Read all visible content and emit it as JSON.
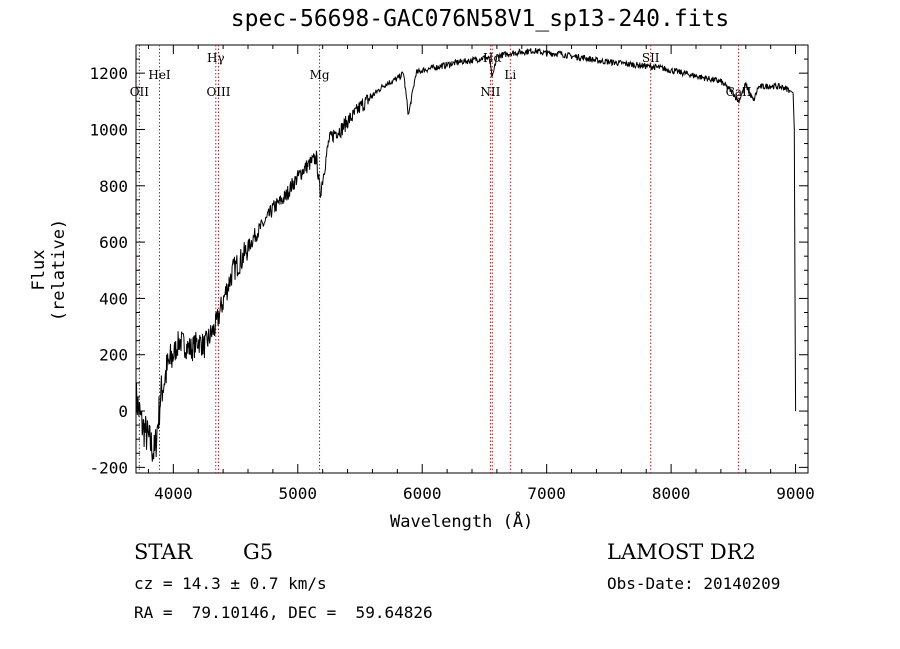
{
  "title": "spec-56698-GAC076N58V1_sp13-240.fits",
  "info": {
    "object_type": "STAR",
    "subclass": "G5",
    "redshift": "cz = 14.3 ± 0.7 km/s",
    "coords": "RA =  79.10146, DEC =  59.64826",
    "survey": "LAMOST DR2",
    "obs_date": "Obs-Date: 20140209"
  },
  "chart_data": {
    "type": "line",
    "title": "spec-56698-GAC076N58V1_sp13-240.fits",
    "xlabel": "Wavelength (Å)",
    "ylabel": "Flux (relative)",
    "xlim": [
      3700,
      9100
    ],
    "ylim": [
      -220,
      1300
    ],
    "x_ticks": [
      4000,
      5000,
      6000,
      7000,
      8000,
      9000
    ],
    "y_ticks": [
      -200,
      0,
      200,
      400,
      600,
      800,
      1000,
      1200
    ],
    "grid": false,
    "line_color": "#000000",
    "series": [
      {
        "x": [
          3700,
          3750,
          3800,
          3850,
          3900,
          3950,
          4000,
          4050,
          4100,
          4150,
          4200,
          4250,
          4300,
          4340,
          4380,
          4420,
          4480,
          4550,
          4600,
          4650,
          4700,
          4750,
          4800,
          4850,
          4900,
          4950,
          5000,
          5050,
          5100,
          5150,
          5180,
          5250,
          5300,
          5350,
          5400,
          5450,
          5500,
          5600,
          5700,
          5800,
          5850,
          5890,
          5950,
          6000,
          6100,
          6200,
          6300,
          6400,
          6500,
          6540,
          6563,
          6600,
          6700,
          6800,
          6900,
          7000,
          7100,
          7200,
          7300,
          7400,
          7500,
          7600,
          7700,
          7800,
          7900,
          8000,
          8100,
          8200,
          8300,
          8400,
          8498,
          8542,
          8600,
          8662,
          8700,
          8800,
          8900,
          8950,
          8980,
          8990,
          9000
        ],
        "y": [
          50,
          -50,
          -100,
          -150,
          60,
          150,
          200,
          250,
          230,
          220,
          250,
          230,
          270,
          300,
          360,
          420,
          500,
          540,
          580,
          620,
          650,
          680,
          720,
          740,
          760,
          800,
          830,
          860,
          880,
          900,
          770,
          960,
          990,
          1000,
          1030,
          1050,
          1080,
          1120,
          1160,
          1180,
          1200,
          1050,
          1200,
          1210,
          1220,
          1230,
          1240,
          1245,
          1255,
          1250,
          1180,
          1260,
          1270,
          1275,
          1280,
          1270,
          1270,
          1260,
          1255,
          1245,
          1240,
          1235,
          1230,
          1225,
          1220,
          1210,
          1200,
          1190,
          1180,
          1170,
          1130,
          1100,
          1160,
          1100,
          1150,
          1155,
          1150,
          1140,
          1130,
          1000,
          0
        ]
      }
    ],
    "spectral_lines": [
      {
        "label": "OII",
        "x": 3727,
        "row": "low"
      },
      {
        "label": "HeI",
        "x": 3889,
        "row": "mid"
      },
      {
        "label": "Hγ",
        "x": 4341,
        "row": "high"
      },
      {
        "label": "OIII",
        "x": 4363,
        "row": "low"
      },
      {
        "label": "Mg",
        "x": 5175,
        "row": "mid"
      },
      {
        "label": "NII",
        "x": 6548,
        "row": "low"
      },
      {
        "label": "Hα",
        "x": 6563,
        "row": "high"
      },
      {
        "label": "Li",
        "x": 6708,
        "row": "mid"
      },
      {
        "label": "SII",
        "x": 7836,
        "row": "high"
      },
      {
        "label": "CaII",
        "x": 8542,
        "row": "low"
      }
    ]
  }
}
